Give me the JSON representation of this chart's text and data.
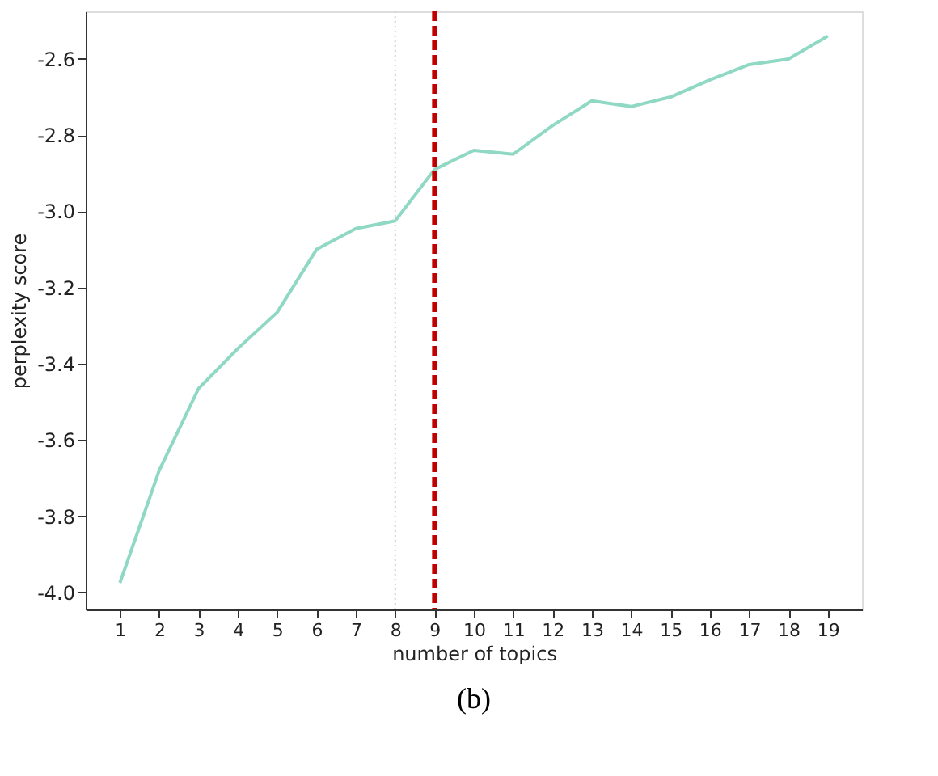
{
  "chart_data": {
    "type": "line",
    "xlabel": "number of topics",
    "ylabel": "perplexity score",
    "x": [
      1,
      2,
      3,
      4,
      5,
      6,
      7,
      8,
      9,
      10,
      11,
      12,
      13,
      14,
      15,
      16,
      17,
      18,
      19
    ],
    "series": [
      {
        "color": "#8fd8c4",
        "values": [
          -3.975,
          -3.68,
          -3.465,
          -3.36,
          -3.265,
          -3.1,
          -3.045,
          -3.025,
          -2.89,
          -2.84,
          -2.85,
          -2.775,
          -2.71,
          -2.725,
          -2.7,
          -2.655,
          -2.615,
          -2.6,
          -2.54
        ]
      }
    ],
    "xlim": [
      0.13,
      19.87
    ],
    "xticks": [
      1,
      2,
      3,
      4,
      5,
      6,
      7,
      8,
      9,
      10,
      11,
      12,
      13,
      14,
      15,
      16,
      17,
      18,
      19
    ],
    "ylim": [
      -4.045,
      -2.475
    ],
    "yticks": [
      {
        "value": -4.0,
        "label": "-4.0"
      },
      {
        "value": -3.8,
        "label": "-3.8"
      },
      {
        "value": -3.6,
        "label": "-3.6"
      },
      {
        "value": -3.4,
        "label": "-3.4"
      },
      {
        "value": -3.2,
        "label": "-3.2"
      },
      {
        "value": -3.0,
        "label": "-3.0"
      },
      {
        "value": -2.8,
        "label": "-2.8"
      },
      {
        "value": -2.6,
        "label": "-2.6"
      }
    ],
    "ref_lines": [
      {
        "axis": "x",
        "value": 8,
        "color": "#d0d0d0",
        "line_style": "dotted"
      },
      {
        "axis": "x",
        "value": 9,
        "color": "#c00000",
        "line_style": "dashed"
      }
    ],
    "annotations": [
      "(b)"
    ],
    "grid": false,
    "marker": "none",
    "line_style": "solid"
  }
}
